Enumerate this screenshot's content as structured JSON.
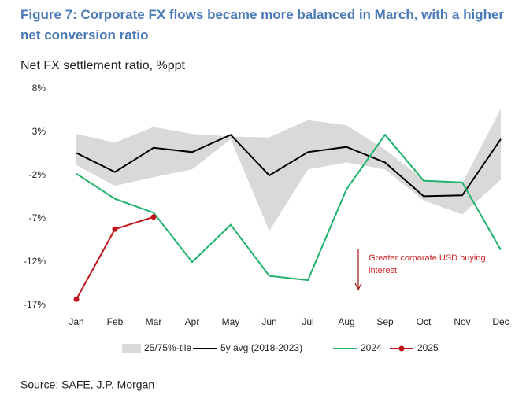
{
  "chart_data": {
    "type": "line",
    "title": "Figure 7: Corporate FX flows became more balanced in March, with a higher net conversion ratio",
    "subtitle": "Net FX settlement ratio, %ppt",
    "source": "Source: SAFE, J.P. Morgan",
    "annotation": [
      "Greater corporate USD buying",
      "interest"
    ],
    "categories": [
      "Jan",
      "Feb",
      "Mar",
      "Apr",
      "May",
      "Jun",
      "Jul",
      "Aug",
      "Sep",
      "Oct",
      "Nov",
      "Dec"
    ],
    "ylim": [
      -17,
      8
    ],
    "yticks": [
      {
        "value": 8,
        "label": "8%"
      },
      {
        "value": 3,
        "label": "3%"
      },
      {
        "value": -2,
        "label": "-2%"
      },
      {
        "value": -7,
        "label": "-7%"
      },
      {
        "value": -12,
        "label": "-12%"
      },
      {
        "value": -17,
        "label": "-17%"
      }
    ],
    "series": [
      {
        "name": "25/75%-tile",
        "color": "#d9d9d9",
        "upper": [
          2.8,
          1.8,
          3.6,
          2.8,
          2.5,
          2.4,
          4.4,
          3.8,
          1.0,
          -2.5,
          -2.9,
          5.7
        ],
        "lower": [
          -0.8,
          -3.2,
          -2.2,
          -1.3,
          2.2,
          -8.4,
          -1.3,
          -0.5,
          -1.3,
          -4.9,
          -6.5,
          -2.5
        ]
      },
      {
        "name": "5y avg (2018-2023)",
        "color": "#000000",
        "values": [
          0.6,
          -1.6,
          1.2,
          0.7,
          2.7,
          -2.0,
          0.7,
          1.3,
          -0.5,
          -4.4,
          -4.3,
          2.2
        ]
      },
      {
        "name": "2024",
        "color": "#1db36b",
        "values": [
          -1.8,
          -4.7,
          -6.3,
          -12.0,
          -7.7,
          -13.6,
          -14.1,
          -3.6,
          2.7,
          -2.6,
          -2.8,
          -10.6
        ]
      },
      {
        "name": "2025",
        "color": "#c0141c",
        "values": [
          -16.3,
          -8.2,
          -6.8,
          null,
          null,
          null,
          null,
          null,
          null,
          null,
          null,
          null
        ]
      }
    ]
  }
}
